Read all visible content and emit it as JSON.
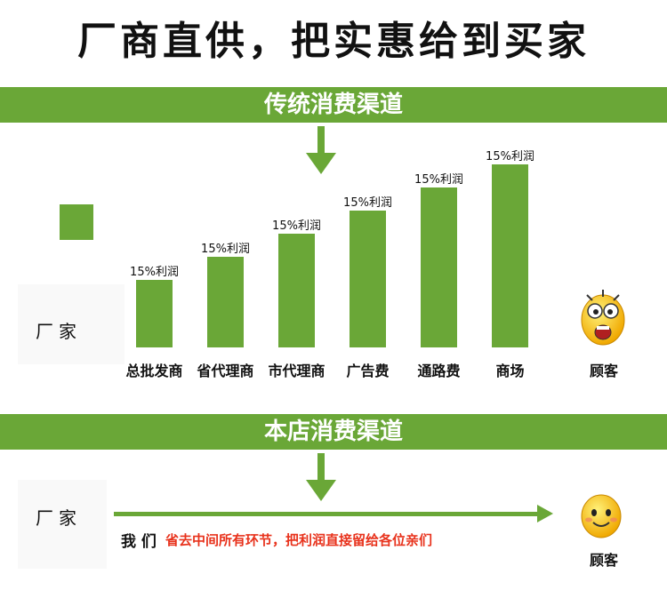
{
  "headline": "厂商直供，把实惠给到买家",
  "traditional": {
    "title": "传统消费渠道",
    "factory_label": "厂家",
    "bars": [
      {
        "label": "15%利润",
        "stage": "总批发商",
        "level": 1
      },
      {
        "label": "15%利润",
        "stage": "省代理商",
        "level": 2
      },
      {
        "label": "15%利润",
        "stage": "市代理商",
        "level": 3
      },
      {
        "label": "15%利润",
        "stage": "广告费",
        "level": 4
      },
      {
        "label": "15%利润",
        "stage": "通路费",
        "level": 5
      },
      {
        "label": "15%利润",
        "stage": "商场",
        "level": 6
      }
    ],
    "customer_label": "顾客"
  },
  "store": {
    "title": "本店消费渠道",
    "factory_label": "厂家",
    "we_label": "我 们",
    "slogan": "省去中间所有环节，把利润直接留给各位亲们",
    "customer_label": "顾客"
  },
  "colors": {
    "accent": "#6aa737",
    "slogan": "#e8321c"
  },
  "icons": [
    "shocked-face-icon",
    "smiling-face-icon"
  ]
}
